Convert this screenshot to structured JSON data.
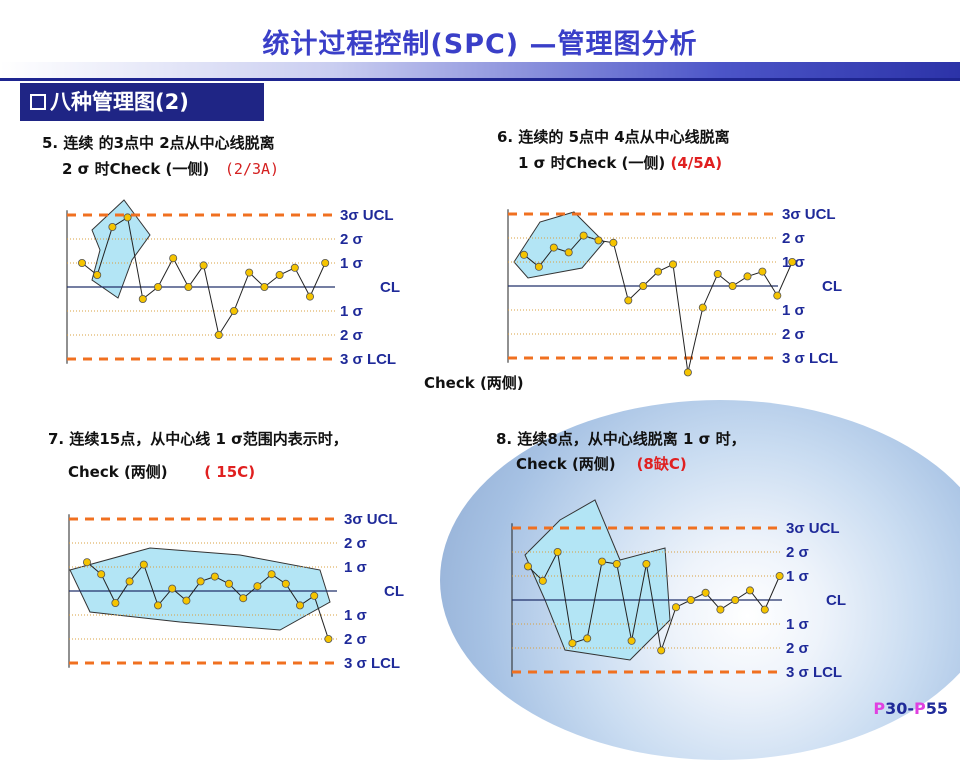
{
  "title": "统计过程控制(SPC) —管理图分析",
  "section": "八种管理图(2)",
  "captions": {
    "c5_line1": "5. 连续 的3点中 2点从中心线脱离",
    "c5_line2": "2 σ 时Check (一侧)",
    "c5_note": "(2/3A)",
    "c6_line1": "6. 连续的 5点中 4点从中心线脱离",
    "c6_line2": "1 σ 时Check (一侧)",
    "c6_note": "(4/5A)",
    "both": "Check (两侧)",
    "c7_line1": "7.  连续15点，从中心线 1 σ范围内表示时，",
    "c7_line2": "Check (两侧)",
    "c7_note": "( 15C)",
    "c8_line1": "8. 连续8点，从中心线脱离 1 σ 时，",
    "c8_line2": "Check (两侧)",
    "c8_note": "(8缺C)"
  },
  "axis_labels": [
    "3σ  UCL",
    "2 σ",
    "1 σ",
    "CL",
    "1 σ",
    "2 σ",
    "3 σ LCL"
  ],
  "page": {
    "prefix": "P",
    "from": "30",
    "sep": "-",
    "prefix2": "P",
    "to": "55"
  },
  "colors": {
    "limit": "#f07020",
    "grid": "#d9a040",
    "center": "#22306a",
    "point": "#f5c400",
    "star": "#b3e5f5"
  },
  "chart_data": [
    {
      "type": "line",
      "title": "5",
      "y": [
        1,
        0.5,
        2.5,
        2.9,
        -0.5,
        0,
        1.2,
        0,
        0.9,
        -2,
        -1,
        0.6,
        0,
        0.5,
        0.8,
        -0.4,
        1
      ],
      "ylim": [
        -3,
        3
      ]
    },
    {
      "type": "line",
      "title": "6",
      "y": [
        1.3,
        0.8,
        1.6,
        1.4,
        2.1,
        1.9,
        1.8,
        -0.6,
        0,
        0.6,
        0.9,
        -3.6,
        -0.9,
        0.5,
        0,
        0.4,
        0.6,
        -0.4,
        1
      ],
      "ylim": [
        -3,
        3
      ]
    },
    {
      "type": "line",
      "title": "7",
      "y": [
        1.2,
        0.7,
        -0.5,
        0.4,
        1.1,
        -0.6,
        0.1,
        -0.4,
        0.4,
        0.6,
        0.3,
        -0.3,
        0.2,
        0.7,
        0.3,
        -0.6,
        -0.2,
        -2
      ],
      "ylim": [
        -3,
        3
      ]
    },
    {
      "type": "line",
      "title": "8",
      "y": [
        1.4,
        0.8,
        2,
        -1.8,
        -1.6,
        1.6,
        1.5,
        -1.7,
        1.5,
        -2.1,
        -0.3,
        0,
        0.3,
        -0.4,
        0,
        0.4,
        -0.4,
        1
      ],
      "ylim": [
        -3,
        3
      ]
    }
  ]
}
